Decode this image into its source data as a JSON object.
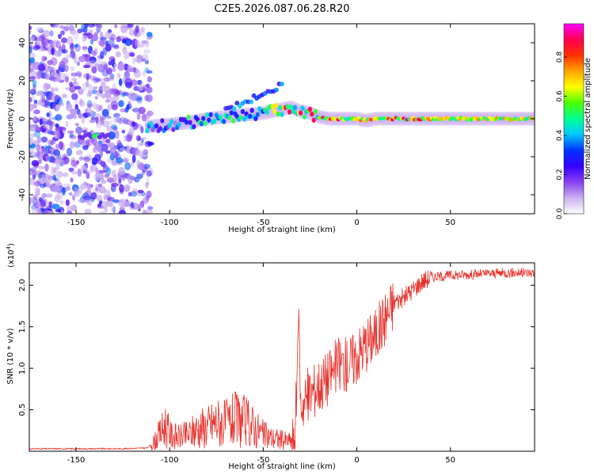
{
  "title": "C2E5.2026.087.06.28.R20",
  "colors": {
    "snr_line": "#e8322c",
    "cmap": [
      "#ffffff",
      "#c9b2ee",
      "#8a3ff0",
      "#3500ff",
      "#0033ff",
      "#00c8ff",
      "#00ff96",
      "#4cff00",
      "#ffff00",
      "#ffa500",
      "#ff3200",
      "#ff0050",
      "#ff00ff"
    ]
  },
  "chart_data": [
    {
      "type": "heatmap",
      "title": "C2E5.2026.087.06.28.R20",
      "xlabel": "Height of straight line (km)",
      "ylabel": "Frequency (Hz)",
      "xlim": [
        -175,
        95
      ],
      "ylim": [
        -50,
        50
      ],
      "xticks": [
        -150,
        -100,
        -50,
        0,
        50
      ],
      "yticks": [
        -40,
        -20,
        0,
        20,
        40
      ],
      "xtick_labels": [
        "-150",
        "-100",
        "-50",
        "0",
        "50"
      ],
      "ytick_labels": [
        "-40",
        "-20",
        "0",
        "20",
        "40"
      ],
      "colorbar": {
        "label": "Normalized spectral amplitude",
        "range": [
          0,
          0.97
        ],
        "ticks": [
          0.0,
          0.2,
          0.4,
          0.6,
          0.8
        ],
        "tick_labels": [
          "0.0",
          "0.2",
          "0.4",
          "0.6",
          "0.8"
        ]
      },
      "ridge": {
        "x": [
          -110,
          -100,
          -90,
          -80,
          -70,
          -60,
          -50,
          -40,
          -35,
          -30,
          -25,
          -20,
          -15,
          -10,
          -5,
          0,
          5,
          10,
          20,
          30,
          40,
          50,
          60,
          70,
          80,
          95
        ],
        "y": [
          -4,
          -3,
          -2,
          0,
          1,
          2,
          3,
          5,
          6,
          4,
          3,
          1,
          0,
          0,
          0,
          0,
          -1,
          0,
          0,
          0,
          0,
          0,
          0,
          0,
          0,
          0
        ]
      }
    },
    {
      "type": "line",
      "xlabel": "Height of straight line (km)",
      "ylabel": "SNR (10 * v/v)",
      "y_multiplier": "(x10",
      "y_multiplier_exp": "4",
      "y_multiplier_close": ")",
      "xlim": [
        -175,
        95
      ],
      "ylim": [
        0,
        2.27
      ],
      "xticks": [
        -150,
        -100,
        -50,
        0,
        50
      ],
      "yticks": [
        0.5,
        1.0,
        1.5,
        2.0
      ],
      "xtick_labels": [
        "-150",
        "-100",
        "-50",
        "0",
        "50"
      ],
      "ytick_labels": [
        "0.5",
        "1.0",
        "1.5",
        "2.0"
      ],
      "series": [
        {
          "name": "SNR",
          "x": [
            -175,
            -150,
            -125,
            -112,
            -108,
            -105,
            -102,
            -100,
            -95,
            -90,
            -85,
            -80,
            -75,
            -70,
            -65,
            -60,
            -55,
            -50,
            -45,
            -40,
            -35,
            -33,
            -31,
            -30,
            -28,
            -25,
            -20,
            -15,
            -10,
            -5,
            0,
            5,
            10,
            15,
            20,
            25,
            30,
            35,
            40,
            50,
            60,
            70,
            80,
            90,
            95
          ],
          "y": [
            0.03,
            0.03,
            0.03,
            0.04,
            0.12,
            0.22,
            0.32,
            0.2,
            0.17,
            0.2,
            0.28,
            0.3,
            0.36,
            0.33,
            0.38,
            0.36,
            0.3,
            0.2,
            0.16,
            0.14,
            0.12,
            0.16,
            1.6,
            0.58,
            0.6,
            0.7,
            0.8,
            0.9,
            1.05,
            1.05,
            1.15,
            1.3,
            1.4,
            1.6,
            1.8,
            1.85,
            1.95,
            2.05,
            2.1,
            2.12,
            2.13,
            2.14,
            2.15,
            2.15,
            2.15
          ]
        }
      ]
    }
  ]
}
